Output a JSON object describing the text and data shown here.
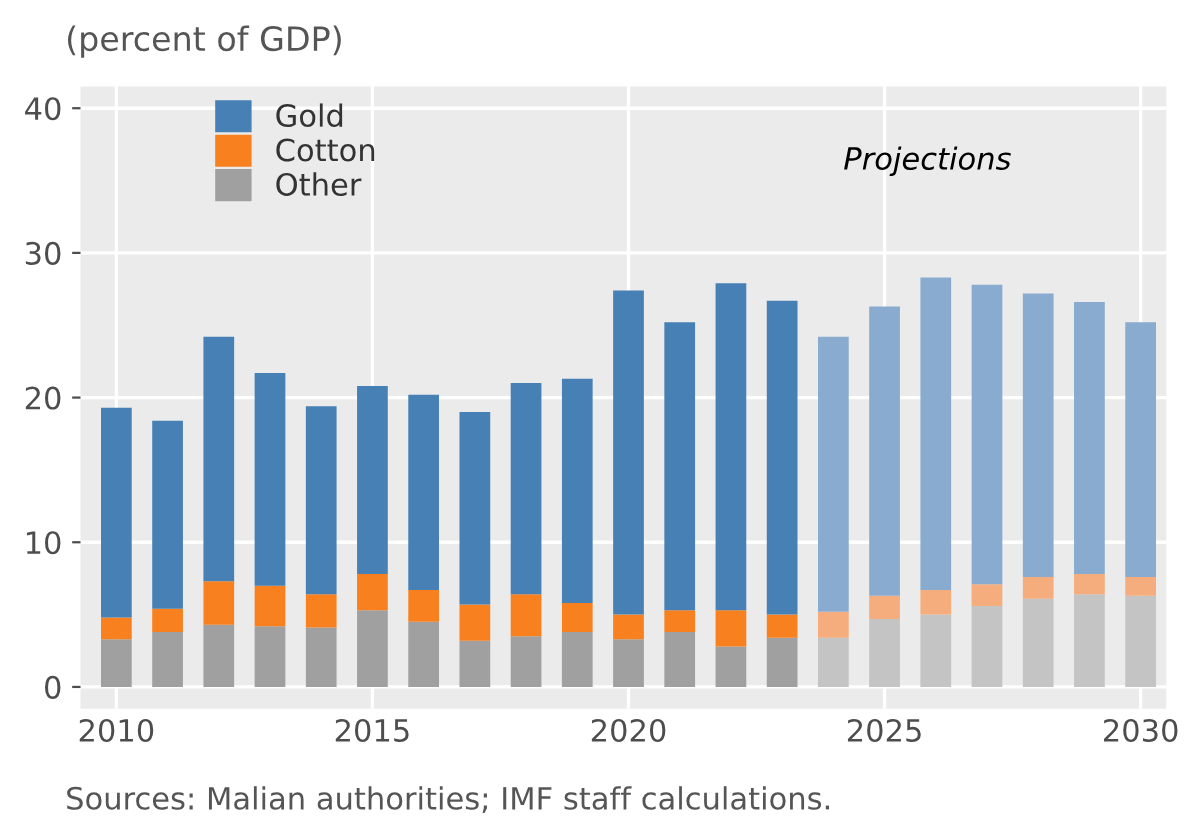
{
  "chart_data": {
    "type": "bar",
    "stacked": true,
    "subtitle": "(percent of GDP)",
    "x": [
      2010,
      2011,
      2012,
      2013,
      2014,
      2015,
      2016,
      2017,
      2018,
      2019,
      2020,
      2021,
      2022,
      2023,
      2024,
      2025,
      2026,
      2027,
      2028,
      2029,
      2030
    ],
    "series": [
      {
        "name": "Other",
        "color": "#a0a0a0",
        "colors": [
          "#a0a0a0",
          "#a0a0a0",
          "#a0a0a0",
          "#a0a0a0",
          "#a0a0a0",
          "#a0a0a0",
          "#a0a0a0",
          "#a0a0a0",
          "#a0a0a0",
          "#a0a0a0",
          "#a0a0a0",
          "#a0a0a0",
          "#a0a0a0",
          "#a0a0a0",
          "#c4c4c4",
          "#c4c4c4",
          "#c4c4c4",
          "#c4c4c4",
          "#c4c4c4",
          "#c4c4c4",
          "#c4c4c4"
        ],
        "values": [
          3.3,
          3.8,
          4.3,
          4.2,
          4.1,
          5.3,
          4.5,
          3.2,
          3.5,
          3.8,
          3.3,
          3.8,
          2.8,
          3.4,
          3.4,
          4.7,
          5.0,
          5.6,
          6.1,
          6.4,
          6.3
        ]
      },
      {
        "name": "Cotton",
        "color": "#f8801e",
        "colors": [
          "#f8801e",
          "#f8801e",
          "#f8801e",
          "#f8801e",
          "#f8801e",
          "#f8801e",
          "#f8801e",
          "#f8801e",
          "#f8801e",
          "#f8801e",
          "#f8801e",
          "#f8801e",
          "#f8801e",
          "#f8801e",
          "#f5ad7d",
          "#f5ad7d",
          "#f5ad7d",
          "#f5ad7d",
          "#f5ad7d",
          "#f5ad7d",
          "#f5ad7d"
        ],
        "values": [
          1.5,
          1.6,
          3.0,
          2.8,
          2.3,
          2.5,
          2.2,
          2.5,
          2.9,
          2.0,
          1.7,
          1.5,
          2.5,
          1.6,
          1.8,
          1.6,
          1.7,
          1.5,
          1.5,
          1.4,
          1.3
        ]
      },
      {
        "name": "Gold",
        "color": "#4680b4",
        "colors": [
          "#4680b4",
          "#4680b4",
          "#4680b4",
          "#4680b4",
          "#4680b4",
          "#4680b4",
          "#4680b4",
          "#4680b4",
          "#4680b4",
          "#4680b4",
          "#4680b4",
          "#4680b4",
          "#4680b4",
          "#4680b4",
          "#88abcf",
          "#88abcf",
          "#88abcf",
          "#88abcf",
          "#88abcf",
          "#88abcf",
          "#88abcf"
        ],
        "values": [
          14.5,
          13.0,
          16.9,
          14.7,
          13.0,
          13.0,
          13.5,
          13.3,
          14.6,
          15.5,
          22.4,
          19.9,
          22.6,
          21.7,
          19.0,
          20.0,
          21.6,
          20.7,
          19.6,
          18.8,
          17.6
        ]
      }
    ],
    "xlim": [
      2009.3,
      2030.5
    ],
    "xticks": [
      2010,
      2015,
      2020,
      2025,
      2030
    ],
    "ylim": [
      -1.5,
      41.5
    ],
    "yticks": [
      0,
      10,
      20,
      30,
      40
    ],
    "grid": true,
    "legend": "top left",
    "annotations": [
      "Projections",
      "Sources: Malian authorities; IMF staff calculations."
    ]
  }
}
